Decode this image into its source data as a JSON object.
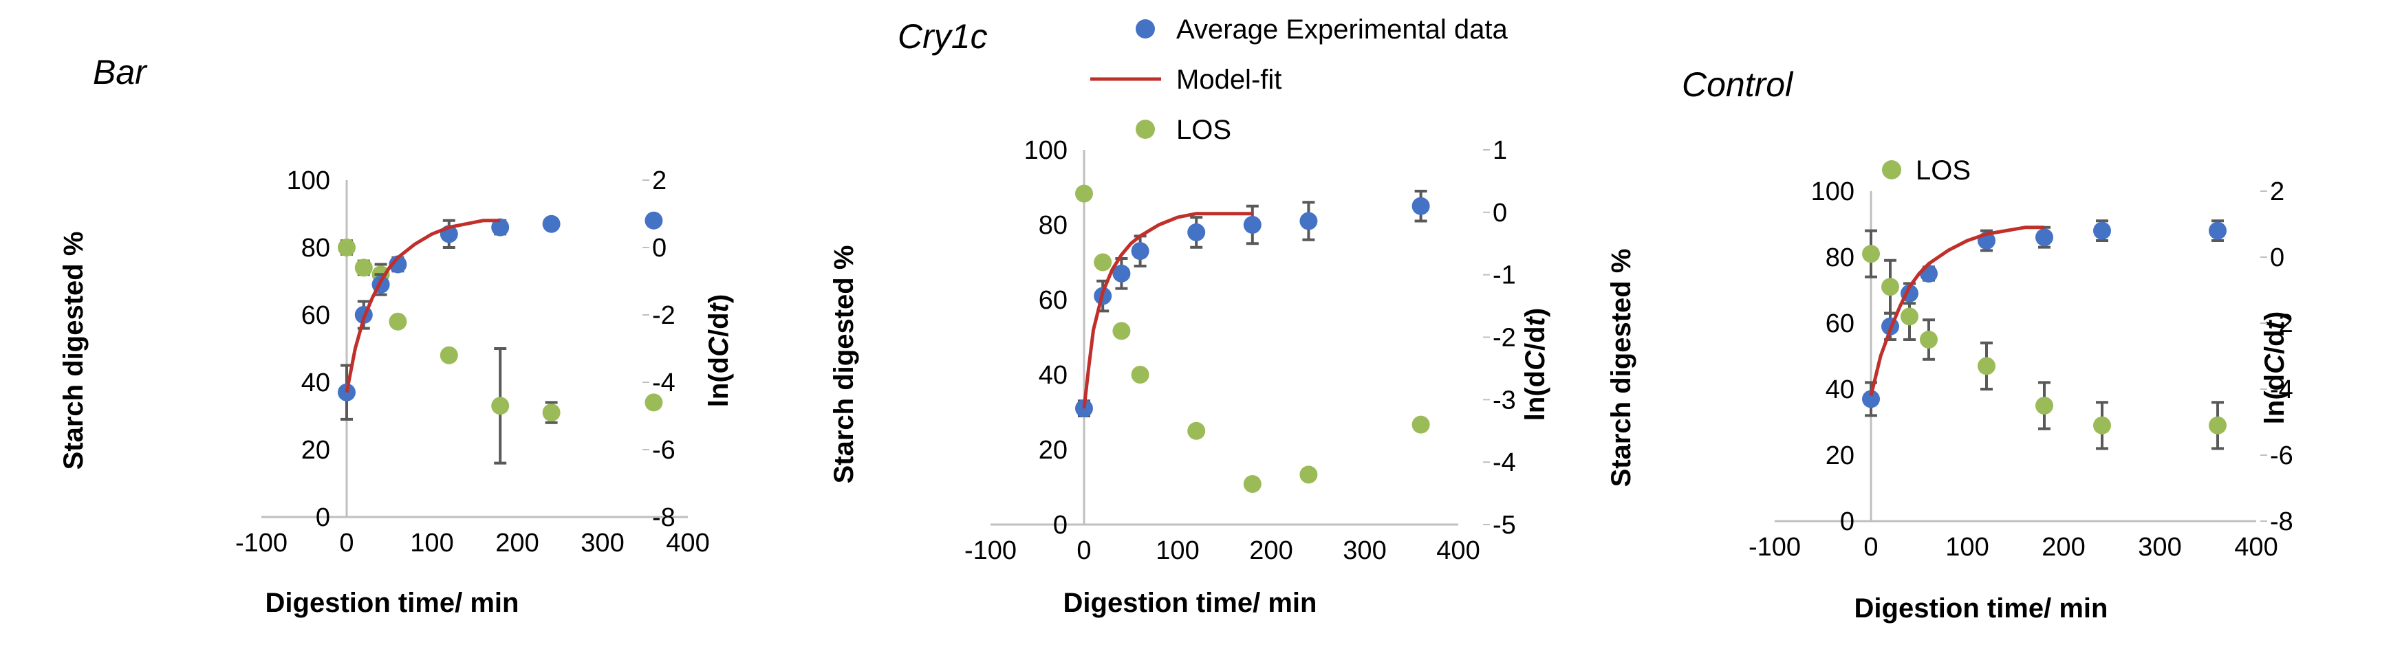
{
  "colors": {
    "experimental": "#4472c4",
    "model": "#c0302a",
    "los": "#9bbb59",
    "errorbar": "#595959",
    "axis": "#bfbfbf"
  },
  "legend": {
    "experimental": "Average Experimental data",
    "model": "Model-fit",
    "los": "LOS",
    "control_los": "LOS"
  },
  "chart_data": [
    {
      "type": "scatter",
      "title": "Bar",
      "xlabel": "Digestion time/ min",
      "ylabel": "Starch digested %",
      "y2label_prefix": "ln(d",
      "y2label_var1": "C",
      "y2label_mid": "/d",
      "y2label_var2": "t",
      "y2label_suffix": ")",
      "xlim": [
        -100,
        400
      ],
      "ylim": [
        0,
        100
      ],
      "y2lim": [
        -8,
        2
      ],
      "xticks": [
        "-100",
        "0",
        "100",
        "200",
        "300",
        "400"
      ],
      "yticks": [
        "0",
        "20",
        "40",
        "60",
        "80",
        "100"
      ],
      "y2ticks": [
        "-8",
        "-6",
        "-4",
        "-2",
        "0",
        "2"
      ],
      "series": [
        {
          "name": "Average Experimental data",
          "x": [
            0,
            20,
            40,
            60,
            120,
            180,
            240,
            360
          ],
          "y": [
            37,
            60,
            69,
            75,
            84,
            86,
            87,
            88
          ],
          "err": [
            8,
            4,
            3,
            2,
            4,
            2,
            0,
            0
          ]
        },
        {
          "name": "Model-fit",
          "x": [
            0,
            10,
            20,
            30,
            40,
            50,
            60,
            80,
            100,
            120,
            140,
            160,
            180
          ],
          "y": [
            37,
            50,
            59,
            65,
            70,
            74,
            77,
            81,
            84,
            86,
            87,
            88,
            88
          ]
        },
        {
          "name": "LOS",
          "x": [
            0,
            20,
            40,
            60,
            120,
            180,
            240,
            360
          ],
          "y": [
            0,
            -0.6,
            -0.8,
            -2.2,
            -3.2,
            -4.7,
            -4.9,
            -4.6
          ],
          "err": [
            0.2,
            0.2,
            0.3,
            0,
            0,
            1.7,
            0.3,
            0
          ]
        }
      ]
    },
    {
      "type": "scatter",
      "title": "Cry1c",
      "xlabel": "Digestion time/ min",
      "ylabel": "Starch digested %",
      "y2label_prefix": "ln(d",
      "y2label_var1": "C",
      "y2label_mid": "/d",
      "y2label_var2": "t",
      "y2label_suffix": ")",
      "xlim": [
        -100,
        400
      ],
      "ylim": [
        0,
        100
      ],
      "y2lim": [
        -5,
        1
      ],
      "xticks": [
        "-100",
        "0",
        "100",
        "200",
        "300",
        "400"
      ],
      "yticks": [
        "0",
        "20",
        "40",
        "60",
        "80",
        "100"
      ],
      "y2ticks": [
        "-5",
        "-4",
        "-3",
        "-2",
        "-1",
        "0",
        "1"
      ],
      "series": [
        {
          "name": "Average Experimental data",
          "x": [
            0,
            20,
            40,
            60,
            120,
            180,
            240,
            360
          ],
          "y": [
            31,
            61,
            67,
            73,
            78,
            80,
            81,
            85
          ],
          "err": [
            2,
            4,
            4,
            4,
            4,
            5,
            5,
            4
          ]
        },
        {
          "name": "Model-fit",
          "x": [
            0,
            5,
            10,
            20,
            30,
            40,
            50,
            60,
            80,
            100,
            120,
            140,
            160,
            180
          ],
          "y": [
            31,
            42,
            52,
            62,
            68,
            72,
            75,
            77,
            80,
            82,
            83,
            83,
            83,
            83
          ]
        },
        {
          "name": "LOS",
          "x": [
            0,
            20,
            40,
            60,
            120,
            180,
            240,
            360
          ],
          "y": [
            0.3,
            -0.8,
            -1.9,
            -2.6,
            -3.5,
            -4.35,
            -4.2,
            -3.4
          ],
          "err": [
            0,
            0,
            0,
            0,
            0,
            0,
            0,
            0
          ]
        }
      ]
    },
    {
      "type": "scatter",
      "title": "Control",
      "xlabel": "Digestion time/ min",
      "ylabel": "Starch digested %",
      "y2label_prefix": "ln(d",
      "y2label_var1": "C",
      "y2label_mid": "/d",
      "y2label_var2": "t",
      "y2label_suffix": ")",
      "xlim": [
        -100,
        400
      ],
      "ylim": [
        0,
        100
      ],
      "y2lim": [
        -8,
        2
      ],
      "xticks": [
        "-100",
        "0",
        "100",
        "200",
        "300",
        "400"
      ],
      "yticks": [
        "0",
        "20",
        "40",
        "60",
        "80",
        "100"
      ],
      "y2ticks": [
        "-8",
        "-6",
        "-4",
        "-2",
        "0",
        "2"
      ],
      "series": [
        {
          "name": "Average Experimental data",
          "x": [
            0,
            20,
            40,
            60,
            120,
            180,
            240,
            360
          ],
          "y": [
            37,
            59,
            69,
            75,
            85,
            86,
            88,
            88
          ],
          "err": [
            5,
            4,
            3,
            2,
            3,
            3,
            3,
            3
          ]
        },
        {
          "name": "Model-fit",
          "x": [
            0,
            10,
            20,
            30,
            40,
            50,
            60,
            80,
            100,
            120,
            140,
            160,
            180
          ],
          "y": [
            38,
            50,
            58,
            65,
            71,
            75,
            78,
            82,
            85,
            87,
            88,
            89,
            89
          ]
        },
        {
          "name": "LOS",
          "x": [
            0,
            20,
            40,
            60,
            120,
            180,
            240,
            360
          ],
          "y": [
            0.1,
            -0.9,
            -1.8,
            -2.5,
            -3.3,
            -4.5,
            -5.1,
            -5.1
          ],
          "err": [
            0.7,
            0.8,
            0.7,
            0.6,
            0.7,
            0.7,
            0.7,
            0.7
          ]
        }
      ]
    }
  ]
}
